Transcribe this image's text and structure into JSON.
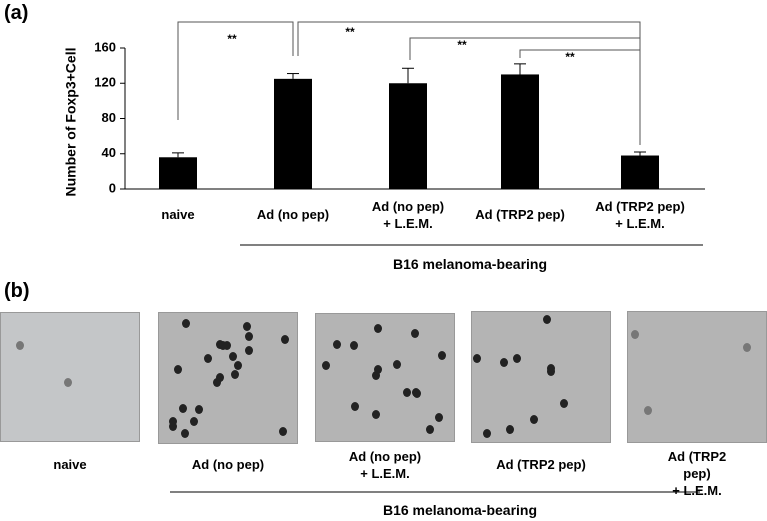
{
  "panel_a": {
    "label": "(a)"
  },
  "chart_data": {
    "type": "bar",
    "y_label": "Number of  Foxp3+Cell",
    "categories": [
      "naive",
      "Ad (no pep)",
      "Ad (no pep)\n+ L.E.M.",
      "Ad (TRP2 pep)",
      "Ad (TRP2 pep)\n+ L.E.M."
    ],
    "values": [
      36,
      125,
      120,
      130,
      38
    ],
    "errors": [
      5,
      6,
      17,
      12,
      4
    ],
    "color": "#000000",
    "ylim": [
      0,
      160
    ],
    "yticks": [
      0,
      40,
      80,
      120,
      160
    ],
    "group_label": "B16 melanoma-bearing",
    "significance": [
      "**",
      "**",
      "**",
      "**"
    ]
  },
  "panel_b": {
    "label": "(b)",
    "captions": [
      "naive",
      "Ad (no pep)",
      "Ad (no pep)\n+ L.E.M.",
      "Ad (TRP2 pep)",
      "Ad (TRP2 pep)\n+ L.E.M."
    ],
    "group_label": "B16 melanoma-bearing"
  }
}
